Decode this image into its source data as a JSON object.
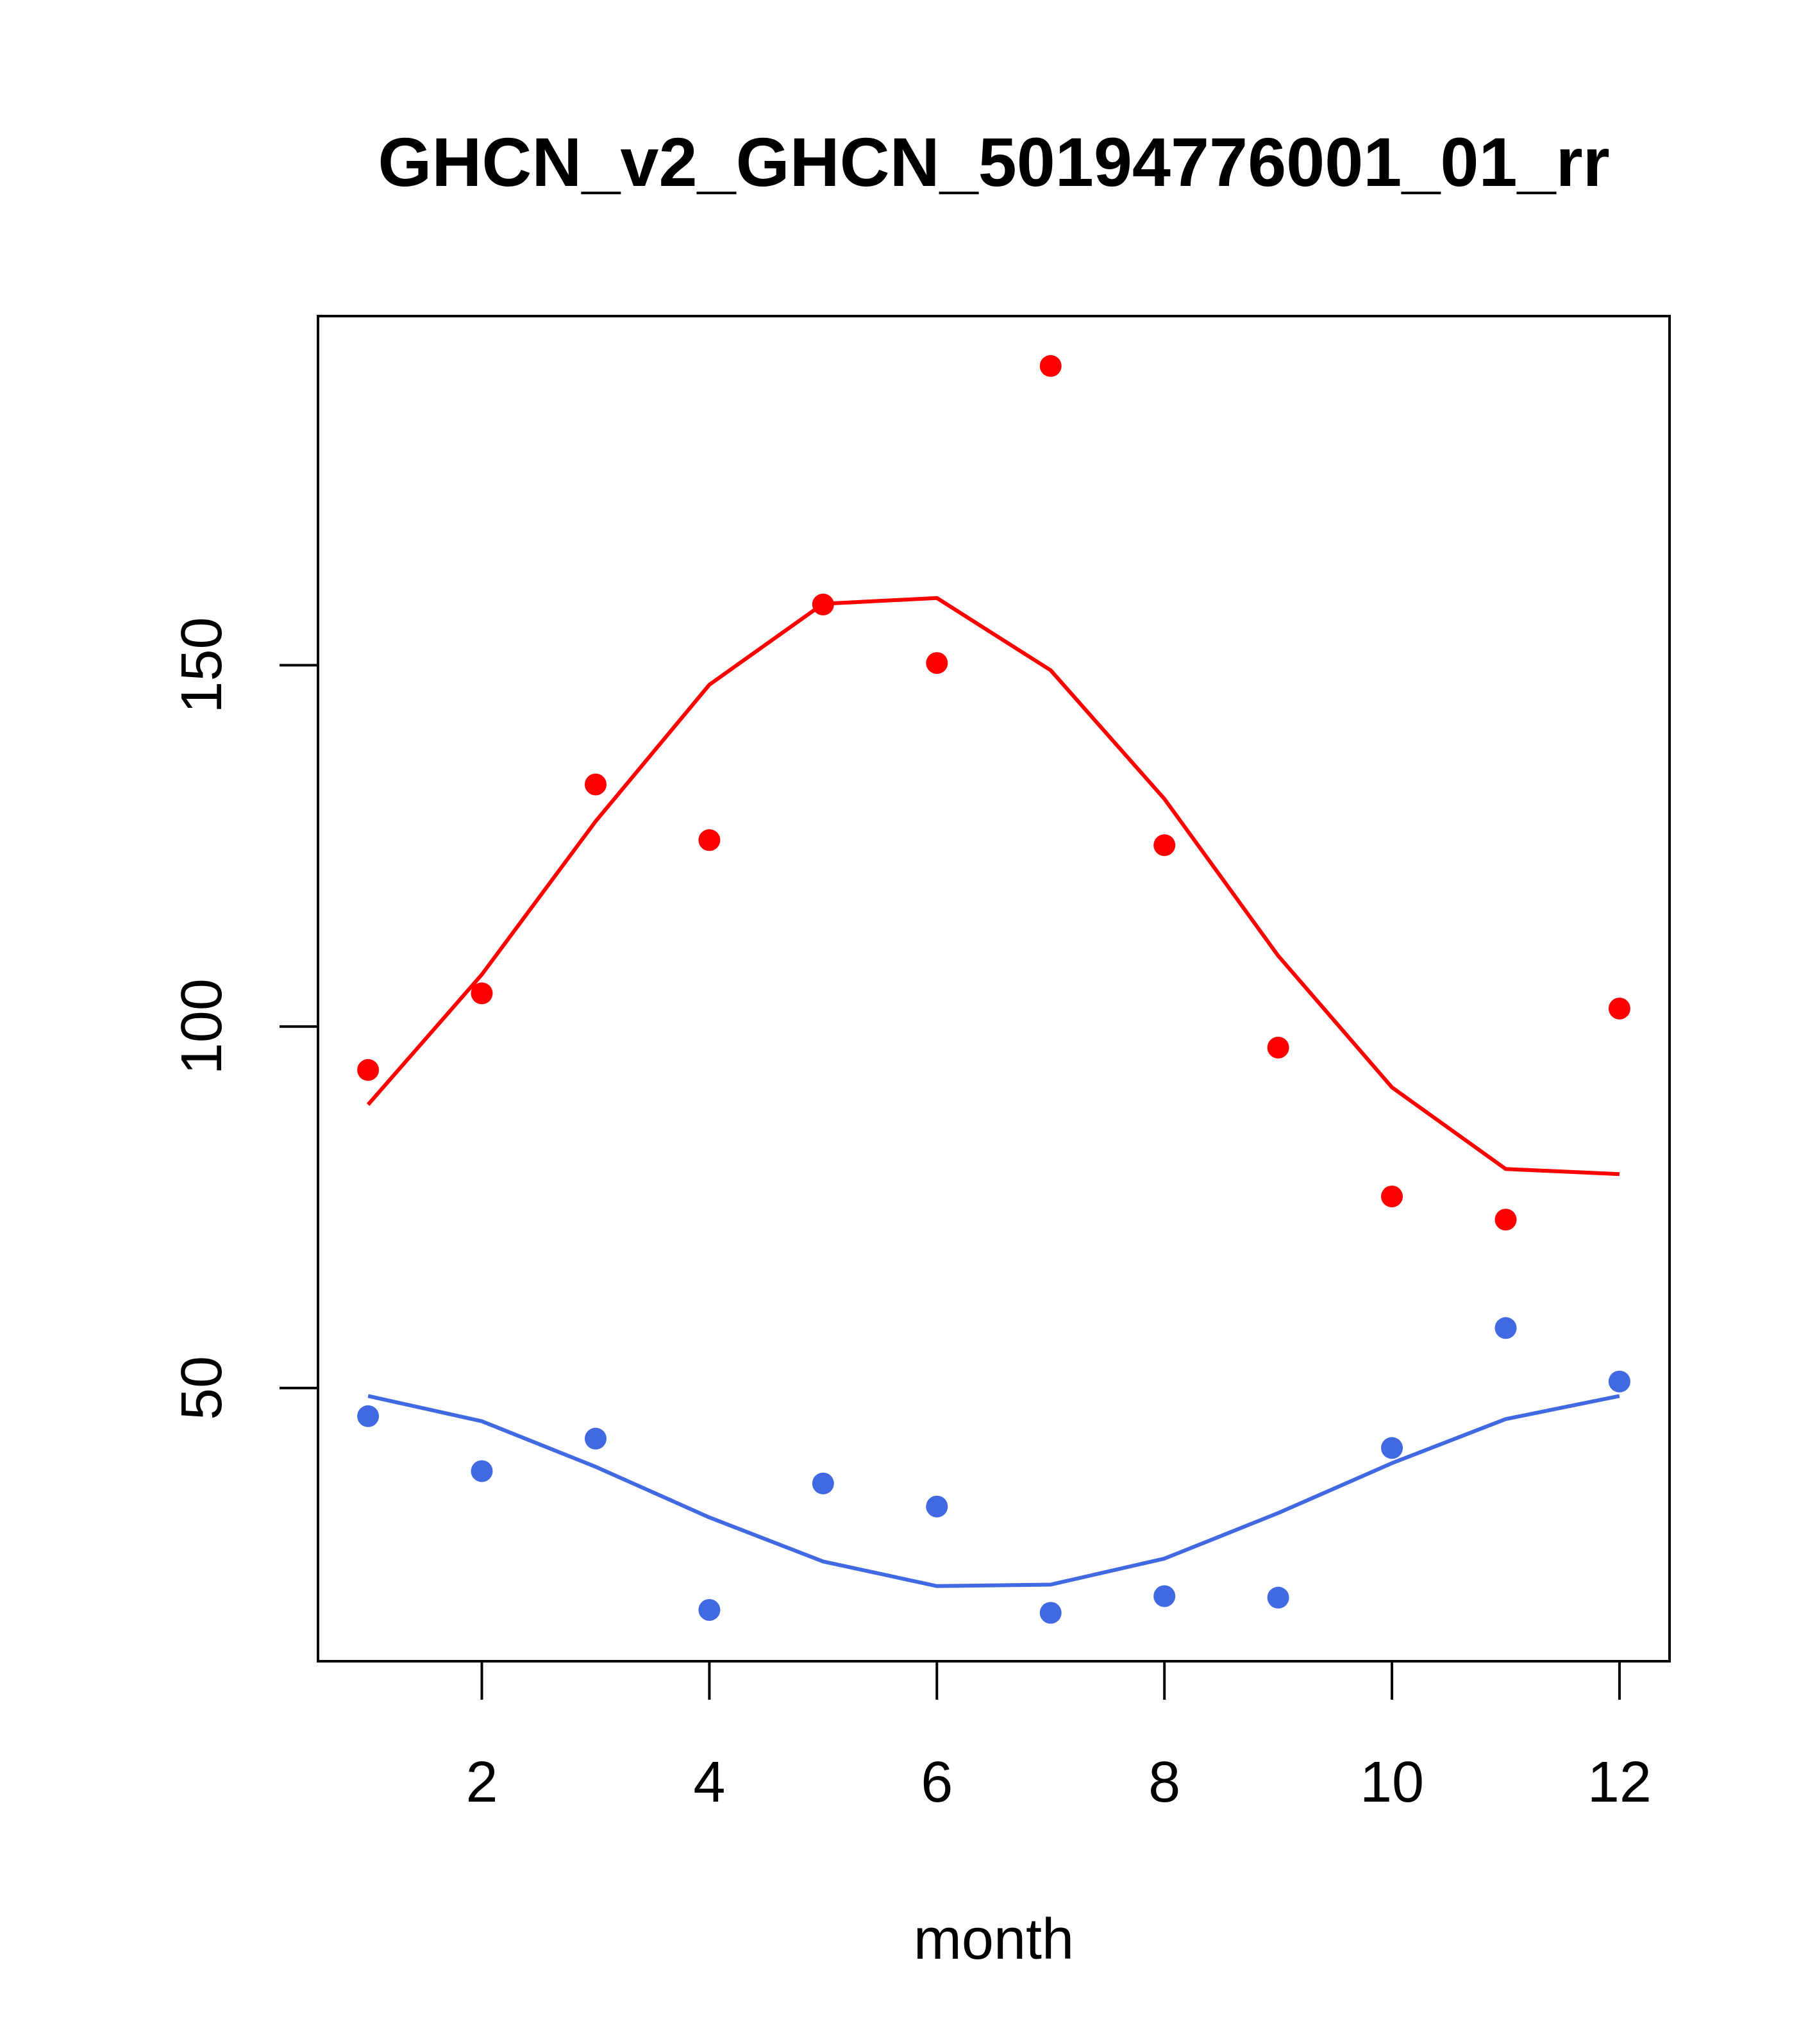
{
  "chart_data": {
    "type": "scatter",
    "title": "GHCN_v2_GHCN_50194776001_01_rr",
    "xlabel": "month",
    "ylabel": "",
    "xlim": [
      0.56,
      12.44
    ],
    "ylim": [
      12.2,
      198.3
    ],
    "x_ticks": [
      2,
      4,
      6,
      8,
      10,
      12
    ],
    "y_ticks": [
      50,
      100,
      150
    ],
    "grid": false,
    "legend": "none",
    "series": [
      {
        "color": "#ff0000",
        "x": [
          1,
          2,
          3,
          4,
          5,
          6,
          7,
          8,
          9,
          10,
          11,
          12
        ],
        "points": [
          94.0,
          104.6,
          133.5,
          125.8,
          158.4,
          150.3,
          191.4,
          125.1,
          97.1,
          76.5,
          73.3,
          102.5
        ],
        "line": [
          89.2,
          107.2,
          128.4,
          147.3,
          158.5,
          159.3,
          149.3,
          131.5,
          109.8,
          91.6,
          80.3,
          79.6
        ]
      },
      {
        "color": "#4169e1",
        "x": [
          1,
          2,
          3,
          4,
          5,
          6,
          7,
          8,
          9,
          10,
          11,
          12
        ],
        "points": [
          46.1,
          38.5,
          43.0,
          19.3,
          36.8,
          33.6,
          18.9,
          21.2,
          21.0,
          41.7,
          58.3,
          50.9
        ],
        "line": [
          48.9,
          45.4,
          39.1,
          32.1,
          26.0,
          22.6,
          22.8,
          26.4,
          32.7,
          39.6,
          45.7,
          48.9
        ]
      }
    ]
  }
}
